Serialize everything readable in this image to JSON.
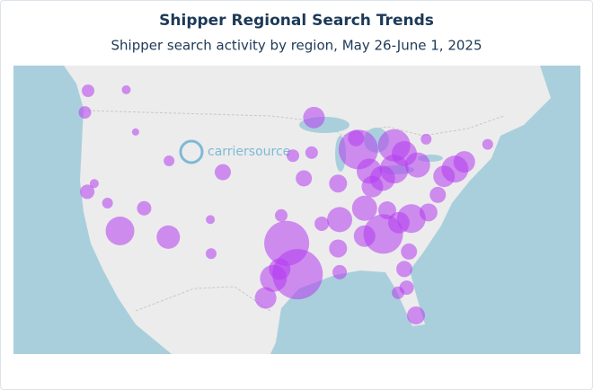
{
  "header": {
    "title": "Shipper Regional Search Trends",
    "subtitle": "Shipper search activity by region, May 26-June 1, 2025"
  },
  "logo": {
    "text": "carriersource"
  },
  "map": {
    "bubble_color": "#b43cf0",
    "bubbles": [
      {
        "lon": -96.8,
        "lat": 32.8,
        "size": 25
      },
      {
        "lon": -95.4,
        "lat": 29.8,
        "size": 28
      },
      {
        "lon": -98.5,
        "lat": 29.4,
        "size": 15
      },
      {
        "lon": -97.7,
        "lat": 30.3,
        "size": 12
      },
      {
        "lon": -84.4,
        "lat": 33.7,
        "size": 22
      },
      {
        "lon": -87.6,
        "lat": 41.9,
        "size": 22
      },
      {
        "lon": -83.0,
        "lat": 42.3,
        "size": 18
      },
      {
        "lon": -83.0,
        "lat": 40.0,
        "size": 16
      },
      {
        "lon": -86.2,
        "lat": 39.8,
        "size": 14
      },
      {
        "lon": -86.8,
        "lat": 36.2,
        "size": 14
      },
      {
        "lon": -90.0,
        "lat": 35.1,
        "size": 14
      },
      {
        "lon": -80.8,
        "lat": 35.2,
        "size": 16
      },
      {
        "lon": -75.2,
        "lat": 40.0,
        "size": 15
      },
      {
        "lon": -74.0,
        "lat": 40.7,
        "size": 12
      },
      {
        "lon": -80.0,
        "lat": 40.4,
        "size": 14
      },
      {
        "lon": -81.7,
        "lat": 41.5,
        "size": 14
      },
      {
        "lon": -84.5,
        "lat": 39.1,
        "size": 14
      },
      {
        "lon": -85.8,
        "lat": 38.3,
        "size": 12
      },
      {
        "lon": -90.2,
        "lat": 38.6,
        "size": 10
      },
      {
        "lon": -94.6,
        "lat": 39.1,
        "size": 9
      },
      {
        "lon": -93.3,
        "lat": 45.0,
        "size": 12
      },
      {
        "lon": -87.9,
        "lat": 43.0,
        "size": 9
      },
      {
        "lon": -118.2,
        "lat": 34.0,
        "size": 16
      },
      {
        "lon": -112.0,
        "lat": 33.4,
        "size": 13
      },
      {
        "lon": -115.1,
        "lat": 36.2,
        "size": 8
      },
      {
        "lon": -122.4,
        "lat": 37.8,
        "size": 8
      },
      {
        "lon": -105.0,
        "lat": 39.7,
        "size": 9
      },
      {
        "lon": -111.9,
        "lat": 40.8,
        "size": 6
      },
      {
        "lon": -122.3,
        "lat": 47.6,
        "size": 7
      },
      {
        "lon": -122.7,
        "lat": 45.5,
        "size": 7
      },
      {
        "lon": -80.2,
        "lat": 25.8,
        "size": 10
      },
      {
        "lon": -81.4,
        "lat": 28.5,
        "size": 8
      },
      {
        "lon": -82.5,
        "lat": 28.0,
        "size": 7
      },
      {
        "lon": -81.7,
        "lat": 30.3,
        "size": 9
      },
      {
        "lon": -86.8,
        "lat": 33.5,
        "size": 12
      },
      {
        "lon": -90.2,
        "lat": 32.3,
        "size": 10
      },
      {
        "lon": -90.0,
        "lat": 30.0,
        "size": 8
      },
      {
        "lon": -97.5,
        "lat": 35.5,
        "size": 7
      },
      {
        "lon": -92.3,
        "lat": 34.7,
        "size": 8
      },
      {
        "lon": -78.6,
        "lat": 35.8,
        "size": 10
      },
      {
        "lon": -77.4,
        "lat": 37.5,
        "size": 9
      },
      {
        "lon": -76.6,
        "lat": 39.3,
        "size": 12
      },
      {
        "lon": -71.0,
        "lat": 42.4,
        "size": 6
      },
      {
        "lon": -78.9,
        "lat": 42.9,
        "size": 6
      },
      {
        "lon": -99.5,
        "lat": 27.5,
        "size": 12
      },
      {
        "lon": -106.5,
        "lat": 31.8,
        "size": 6
      },
      {
        "lon": -106.6,
        "lat": 35.1,
        "size": 5
      },
      {
        "lon": -96.0,
        "lat": 41.3,
        "size": 7
      },
      {
        "lon": -93.6,
        "lat": 41.6,
        "size": 7
      },
      {
        "lon": -82.4,
        "lat": 34.8,
        "size": 12
      },
      {
        "lon": -83.9,
        "lat": 36.0,
        "size": 10
      },
      {
        "lon": -81.1,
        "lat": 32.0,
        "size": 9
      },
      {
        "lon": -117.4,
        "lat": 47.7,
        "size": 5
      },
      {
        "lon": -116.2,
        "lat": 43.6,
        "size": 4
      },
      {
        "lon": -119.8,
        "lat": 36.7,
        "size": 6
      },
      {
        "lon": -121.5,
        "lat": 38.6,
        "size": 5
      }
    ]
  }
}
